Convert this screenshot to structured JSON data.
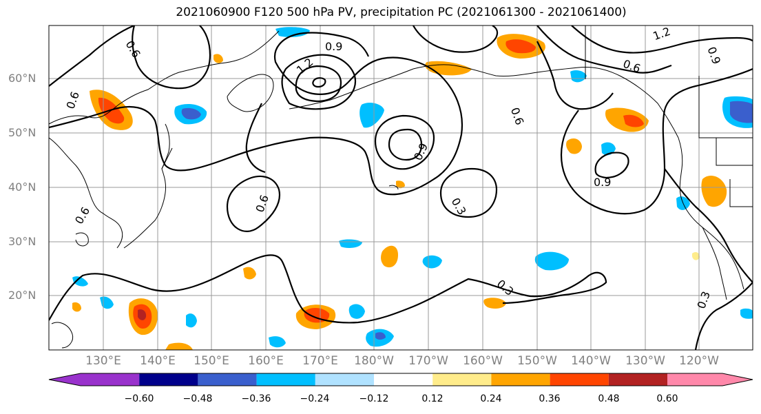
{
  "title": "2021060900 F120 500 hPa PV, precipitation PC (2021061300 - 2021061400)",
  "latitude_labels": [
    "60°N",
    "50°N",
    "40°N",
    "30°N",
    "20°N"
  ],
  "longitude_labels": [
    "130°E",
    "140°E",
    "150°E",
    "160°E",
    "170°E",
    "180°W",
    "170°W",
    "160°W",
    "150°W",
    "140°W",
    "130°W",
    "120°W"
  ],
  "contour_labels": [
    "0.6",
    "0.9",
    "1.2",
    "0.6",
    "0.6",
    "0.9",
    "0.6",
    "0.9",
    "1.2",
    "0.9",
    "0.6",
    "0.3",
    "0.3",
    "0.3",
    "0.6"
  ],
  "colorbar": {
    "ticks": [
      "−0.60",
      "−0.48",
      "−0.36",
      "−0.24",
      "−0.12",
      "0.12",
      "0.24",
      "0.36",
      "0.48",
      "0.60"
    ],
    "colors": [
      "#9932cc",
      "#00008b",
      "#3a5fcd",
      "#00bfff",
      "#b0e2ff",
      "#ffffff",
      "#ffec8b",
      "#ffa500",
      "#ff4500",
      "#b22222",
      "#ff88aa"
    ]
  },
  "colors": {
    "pv_contour": "#000000",
    "coastline": "#000000",
    "gridline": "#999999",
    "axis_label": "#808080"
  }
}
